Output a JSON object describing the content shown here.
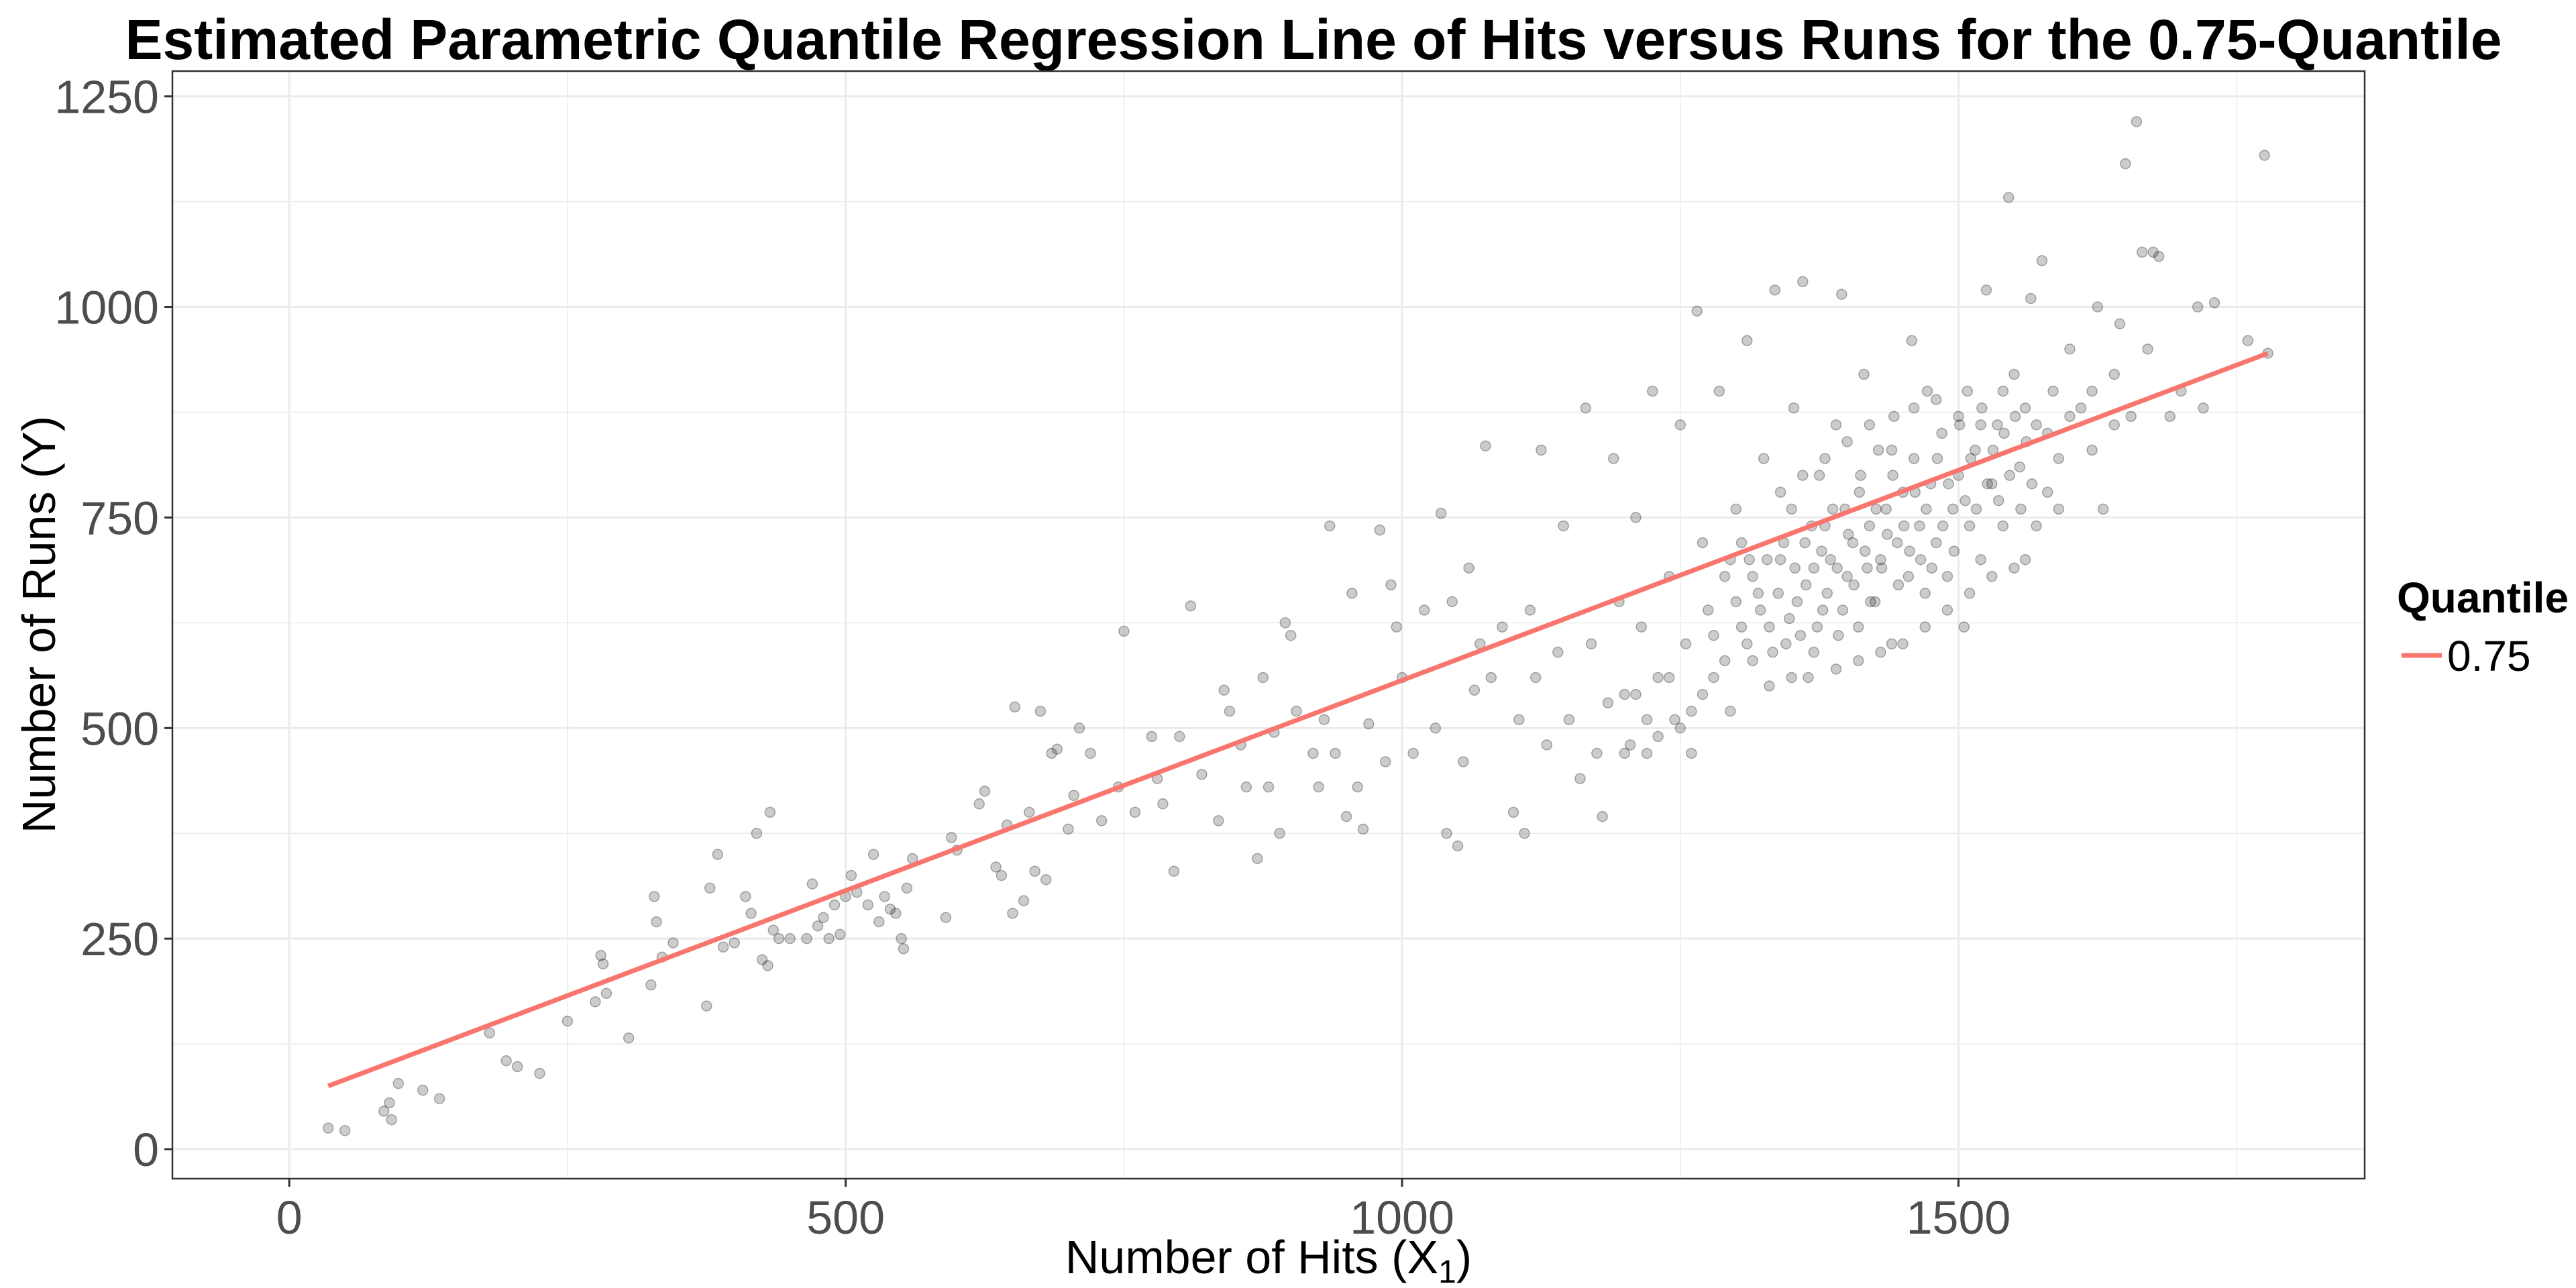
{
  "chart_data": {
    "type": "scatter",
    "title": "Estimated Parametric Quantile Regression Line of Hits versus Runs for the 0.75-Quantile",
    "xlabel": "Number of Hits (X",
    "xlabel_sub": "1",
    "xlabel_close": ")",
    "ylabel": "Number of Runs (Y)",
    "xlim": [
      -105,
      1865
    ],
    "ylim": [
      -35,
      1280
    ],
    "x_ticks": [
      0,
      500,
      1000,
      1500
    ],
    "x_tick_labels": [
      "0",
      "500",
      "1000",
      "1500"
    ],
    "y_ticks": [
      0,
      250,
      500,
      750,
      1000,
      1250
    ],
    "y_tick_labels": [
      "0",
      "250",
      "500",
      "750",
      "1000",
      "1250"
    ],
    "grid": true,
    "legend": {
      "title": "Quantile",
      "position": "right",
      "entries": [
        {
          "label": "0.75",
          "color": "#F8766D"
        }
      ]
    },
    "regression_line": {
      "quantile": 0.75,
      "x": [
        35,
        1778
      ],
      "y": [
        75,
        945
      ],
      "color": "#F8766D"
    },
    "point_color": "#000000",
    "points": [
      [
        35,
        25
      ],
      [
        50,
        22
      ],
      [
        85,
        45
      ],
      [
        90,
        55
      ],
      [
        92,
        35
      ],
      [
        98,
        78
      ],
      [
        120,
        70
      ],
      [
        135,
        60
      ],
      [
        180,
        138
      ],
      [
        195,
        105
      ],
      [
        205,
        98
      ],
      [
        225,
        90
      ],
      [
        250,
        152
      ],
      [
        275,
        175
      ],
      [
        280,
        230
      ],
      [
        282,
        220
      ],
      [
        285,
        185
      ],
      [
        305,
        132
      ],
      [
        325,
        195
      ],
      [
        328,
        300
      ],
      [
        330,
        270
      ],
      [
        335,
        228
      ],
      [
        345,
        245
      ],
      [
        375,
        170
      ],
      [
        378,
        310
      ],
      [
        385,
        350
      ],
      [
        390,
        240
      ],
      [
        400,
        245
      ],
      [
        410,
        300
      ],
      [
        415,
        280
      ],
      [
        420,
        375
      ],
      [
        425,
        225
      ],
      [
        430,
        218
      ],
      [
        432,
        400
      ],
      [
        435,
        260
      ],
      [
        440,
        250
      ],
      [
        450,
        250
      ],
      [
        465,
        250
      ],
      [
        470,
        315
      ],
      [
        475,
        265
      ],
      [
        480,
        275
      ],
      [
        485,
        250
      ],
      [
        490,
        290
      ],
      [
        495,
        255
      ],
      [
        500,
        300
      ],
      [
        505,
        325
      ],
      [
        510,
        305
      ],
      [
        520,
        290
      ],
      [
        525,
        350
      ],
      [
        530,
        270
      ],
      [
        535,
        300
      ],
      [
        540,
        285
      ],
      [
        545,
        280
      ],
      [
        550,
        250
      ],
      [
        552,
        238
      ],
      [
        555,
        310
      ],
      [
        560,
        345
      ],
      [
        590,
        275
      ],
      [
        595,
        370
      ],
      [
        600,
        355
      ],
      [
        620,
        410
      ],
      [
        625,
        425
      ],
      [
        635,
        335
      ],
      [
        640,
        325
      ],
      [
        645,
        385
      ],
      [
        650,
        280
      ],
      [
        652,
        525
      ],
      [
        660,
        295
      ],
      [
        665,
        400
      ],
      [
        670,
        330
      ],
      [
        675,
        520
      ],
      [
        680,
        320
      ],
      [
        685,
        470
      ],
      [
        690,
        475
      ],
      [
        700,
        380
      ],
      [
        705,
        420
      ],
      [
        710,
        500
      ],
      [
        720,
        470
      ],
      [
        730,
        390
      ],
      [
        745,
        430
      ],
      [
        750,
        615
      ],
      [
        760,
        400
      ],
      [
        775,
        490
      ],
      [
        780,
        440
      ],
      [
        785,
        410
      ],
      [
        795,
        330
      ],
      [
        800,
        490
      ],
      [
        810,
        645
      ],
      [
        820,
        445
      ],
      [
        835,
        390
      ],
      [
        840,
        545
      ],
      [
        845,
        520
      ],
      [
        855,
        480
      ],
      [
        860,
        430
      ],
      [
        870,
        345
      ],
      [
        875,
        560
      ],
      [
        880,
        430
      ],
      [
        885,
        495
      ],
      [
        890,
        375
      ],
      [
        895,
        625
      ],
      [
        900,
        610
      ],
      [
        905,
        520
      ],
      [
        920,
        470
      ],
      [
        925,
        430
      ],
      [
        930,
        510
      ],
      [
        935,
        740
      ],
      [
        940,
        470
      ],
      [
        950,
        395
      ],
      [
        955,
        660
      ],
      [
        960,
        430
      ],
      [
        965,
        380
      ],
      [
        970,
        505
      ],
      [
        980,
        735
      ],
      [
        985,
        460
      ],
      [
        990,
        670
      ],
      [
        995,
        620
      ],
      [
        1000,
        560
      ],
      [
        1010,
        470
      ],
      [
        1020,
        640
      ],
      [
        1030,
        500
      ],
      [
        1035,
        755
      ],
      [
        1040,
        375
      ],
      [
        1045,
        650
      ],
      [
        1050,
        360
      ],
      [
        1055,
        460
      ],
      [
        1060,
        690
      ],
      [
        1065,
        545
      ],
      [
        1070,
        600
      ],
      [
        1075,
        835
      ],
      [
        1080,
        560
      ],
      [
        1090,
        620
      ],
      [
        1100,
        400
      ],
      [
        1105,
        510
      ],
      [
        1110,
        375
      ],
      [
        1115,
        640
      ],
      [
        1120,
        560
      ],
      [
        1125,
        830
      ],
      [
        1130,
        480
      ],
      [
        1140,
        590
      ],
      [
        1145,
        740
      ],
      [
        1150,
        510
      ],
      [
        1160,
        440
      ],
      [
        1165,
        880
      ],
      [
        1170,
        600
      ],
      [
        1175,
        470
      ],
      [
        1180,
        395
      ],
      [
        1185,
        530
      ],
      [
        1190,
        820
      ],
      [
        1195,
        650
      ],
      [
        1200,
        540
      ],
      [
        1205,
        480
      ],
      [
        1210,
        750
      ],
      [
        1215,
        620
      ],
      [
        1220,
        470
      ],
      [
        1225,
        900
      ],
      [
        1230,
        560
      ],
      [
        1240,
        680
      ],
      [
        1245,
        510
      ],
      [
        1250,
        860
      ],
      [
        1255,
        600
      ],
      [
        1260,
        470
      ],
      [
        1265,
        995
      ],
      [
        1270,
        720
      ],
      [
        1275,
        640
      ],
      [
        1280,
        560
      ],
      [
        1285,
        900
      ],
      [
        1290,
        680
      ],
      [
        1295,
        520
      ],
      [
        1300,
        760
      ],
      [
        1305,
        620
      ],
      [
        1310,
        960
      ],
      [
        1312,
        700
      ],
      [
        1315,
        580
      ],
      [
        1320,
        660
      ],
      [
        1325,
        820
      ],
      [
        1330,
        620
      ],
      [
        1335,
        1020
      ],
      [
        1340,
        700
      ],
      [
        1345,
        600
      ],
      [
        1350,
        760
      ],
      [
        1352,
        880
      ],
      [
        1355,
        650
      ],
      [
        1360,
        1030
      ],
      [
        1362,
        720
      ],
      [
        1365,
        560
      ],
      [
        1370,
        690
      ],
      [
        1375,
        800
      ],
      [
        1378,
        640
      ],
      [
        1380,
        740
      ],
      [
        1385,
        700
      ],
      [
        1390,
        860
      ],
      [
        1392,
        610
      ],
      [
        1395,
        1015
      ],
      [
        1398,
        760
      ],
      [
        1400,
        680
      ],
      [
        1405,
        720
      ],
      [
        1410,
        580
      ],
      [
        1412,
        800
      ],
      [
        1415,
        920
      ],
      [
        1418,
        690
      ],
      [
        1420,
        740
      ],
      [
        1425,
        650
      ],
      [
        1428,
        830
      ],
      [
        1430,
        700
      ],
      [
        1435,
        760
      ],
      [
        1440,
        600
      ],
      [
        1442,
        870
      ],
      [
        1445,
        720
      ],
      [
        1450,
        780
      ],
      [
        1455,
        680
      ],
      [
        1458,
        960
      ],
      [
        1460,
        820
      ],
      [
        1465,
        740
      ],
      [
        1470,
        660
      ],
      [
        1472,
        900
      ],
      [
        1475,
        790
      ],
      [
        1480,
        720
      ],
      [
        1485,
        850
      ],
      [
        1490,
        680
      ],
      [
        1495,
        760
      ],
      [
        1500,
        800
      ],
      [
        1505,
        620
      ],
      [
        1508,
        900
      ],
      [
        1510,
        740
      ],
      [
        1515,
        830
      ],
      [
        1520,
        700
      ],
      [
        1525,
        1020
      ],
      [
        1530,
        790
      ],
      [
        1535,
        860
      ],
      [
        1540,
        740
      ],
      [
        1545,
        1130
      ],
      [
        1550,
        920
      ],
      [
        1555,
        810
      ],
      [
        1560,
        700
      ],
      [
        1565,
        1010
      ],
      [
        1570,
        860
      ],
      [
        1575,
        1055
      ],
      [
        1580,
        780
      ],
      [
        1585,
        900
      ],
      [
        1590,
        820
      ],
      [
        1600,
        950
      ],
      [
        1610,
        880
      ],
      [
        1620,
        830
      ],
      [
        1625,
        1000
      ],
      [
        1630,
        760
      ],
      [
        1640,
        920
      ],
      [
        1645,
        980
      ],
      [
        1650,
        1170
      ],
      [
        1655,
        870
      ],
      [
        1660,
        1220
      ],
      [
        1665,
        1065
      ],
      [
        1670,
        950
      ],
      [
        1675,
        1065
      ],
      [
        1680,
        1060
      ],
      [
        1690,
        870
      ],
      [
        1700,
        900
      ],
      [
        1715,
        1000
      ],
      [
        1720,
        880
      ],
      [
        1730,
        1005
      ],
      [
        1760,
        960
      ],
      [
        1775,
        1180
      ],
      [
        1778,
        945
      ],
      [
        1322,
        640
      ],
      [
        1328,
        700
      ],
      [
        1333,
        590
      ],
      [
        1338,
        660
      ],
      [
        1343,
        720
      ],
      [
        1348,
        630
      ],
      [
        1353,
        690
      ],
      [
        1358,
        610
      ],
      [
        1363,
        670
      ],
      [
        1368,
        740
      ],
      [
        1373,
        620
      ],
      [
        1377,
        710
      ],
      [
        1382,
        660
      ],
      [
        1387,
        760
      ],
      [
        1391,
        690
      ],
      [
        1396,
        640
      ],
      [
        1401,
        730
      ],
      [
        1406,
        670
      ],
      [
        1411,
        780
      ],
      [
        1416,
        710
      ],
      [
        1421,
        650
      ],
      [
        1426,
        760
      ],
      [
        1431,
        690
      ],
      [
        1436,
        730
      ],
      [
        1441,
        800
      ],
      [
        1446,
        670
      ],
      [
        1451,
        740
      ],
      [
        1456,
        710
      ],
      [
        1461,
        780
      ],
      [
        1466,
        700
      ],
      [
        1471,
        760
      ],
      [
        1476,
        690
      ],
      [
        1481,
        820
      ],
      [
        1486,
        740
      ],
      [
        1491,
        790
      ],
      [
        1496,
        710
      ],
      [
        1501,
        860
      ],
      [
        1506,
        770
      ],
      [
        1511,
        820
      ],
      [
        1516,
        760
      ],
      [
        1521,
        880
      ],
      [
        1526,
        790
      ],
      [
        1531,
        830
      ],
      [
        1536,
        770
      ],
      [
        1541,
        850
      ],
      [
        1546,
        800
      ],
      [
        1551,
        870
      ],
      [
        1556,
        760
      ],
      [
        1561,
        840
      ],
      [
        1566,
        790
      ],
      [
        1280,
        610
      ],
      [
        1290,
        580
      ],
      [
        1300,
        650
      ],
      [
        1310,
        600
      ],
      [
        1270,
        540
      ],
      [
        1260,
        520
      ],
      [
        1250,
        500
      ],
      [
        1240,
        560
      ],
      [
        1230,
        490
      ],
      [
        1220,
        510
      ],
      [
        1210,
        540
      ],
      [
        1200,
        470
      ],
      [
        1295,
        700
      ],
      [
        1305,
        720
      ],
      [
        1315,
        680
      ],
      [
        1340,
        780
      ],
      [
        1360,
        800
      ],
      [
        1380,
        820
      ],
      [
        1400,
        840
      ],
      [
        1420,
        860
      ],
      [
        1440,
        830
      ],
      [
        1460,
        880
      ],
      [
        1480,
        890
      ],
      [
        1500,
        870
      ],
      [
        1520,
        860
      ],
      [
        1540,
        900
      ],
      [
        1560,
        880
      ],
      [
        1580,
        850
      ],
      [
        1600,
        870
      ],
      [
        1620,
        900
      ],
      [
        1640,
        860
      ],
      [
        1590,
        760
      ],
      [
        1570,
        740
      ],
      [
        1550,
        690
      ],
      [
        1530,
        680
      ],
      [
        1510,
        660
      ],
      [
        1490,
        640
      ],
      [
        1470,
        620
      ],
      [
        1450,
        600
      ],
      [
        1430,
        590
      ],
      [
        1410,
        620
      ],
      [
        1390,
        570
      ],
      [
        1370,
        590
      ],
      [
        1350,
        560
      ],
      [
        1330,
        550
      ]
    ]
  }
}
